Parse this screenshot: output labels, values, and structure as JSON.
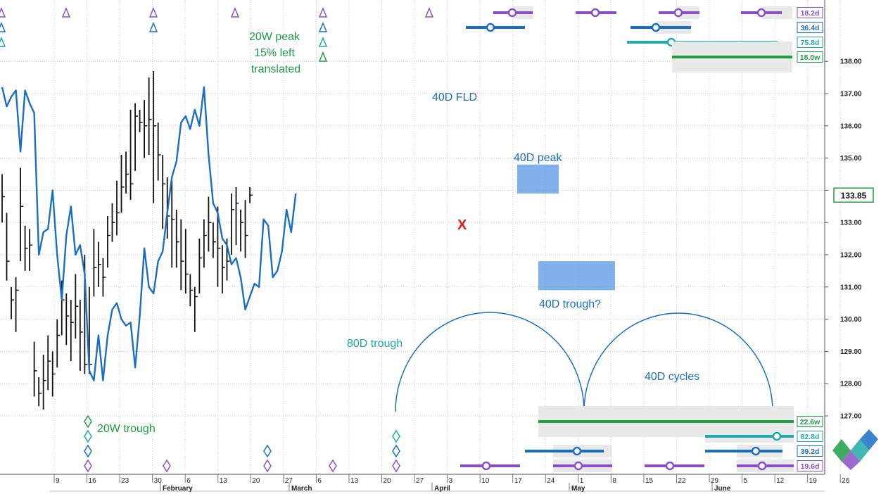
{
  "chart_data": {
    "type": "bar",
    "y_axis": {
      "ylim": [
        126.0,
        138.4
      ],
      "ticks": [
        "127.00",
        "128.00",
        "129.00",
        "130.00",
        "131.00",
        "132.00",
        "133.00",
        "134.00",
        "135.00",
        "136.00",
        "137.00",
        "138.00"
      ],
      "current_price": "133.85"
    },
    "x_axis": {
      "day_ticks": [
        "9",
        "16",
        "23",
        "30",
        "6",
        "13",
        "20",
        "27",
        "6",
        "13",
        "20",
        "27",
        "3",
        "10",
        "17",
        "24",
        "1",
        "8",
        "15",
        "22",
        "29",
        "5",
        "12",
        "19",
        "26"
      ],
      "months": [
        "February",
        "March",
        "April",
        "May",
        "June"
      ]
    },
    "price_bars": [
      {
        "h": 134.5,
        "l": 133.0,
        "c": 133.8
      },
      {
        "h": 133.3,
        "l": 131.2,
        "c": 131.8
      },
      {
        "h": 131.0,
        "l": 130.0,
        "c": 130.6
      },
      {
        "h": 131.3,
        "l": 129.6,
        "c": 130.9
      },
      {
        "h": 134.7,
        "l": 131.8,
        "c": 133.5
      },
      {
        "h": 132.9,
        "l": 131.5,
        "c": 132.2
      },
      {
        "h": 132.8,
        "l": 131.5,
        "c": 132.3
      },
      {
        "h": 129.3,
        "l": 127.6,
        "c": 128.4
      },
      {
        "h": 128.2,
        "l": 127.3,
        "c": 127.7
      },
      {
        "h": 128.9,
        "l": 127.2,
        "c": 128.1
      },
      {
        "h": 129.5,
        "l": 127.8,
        "c": 128.7
      },
      {
        "h": 129.0,
        "l": 127.6,
        "c": 128.3
      },
      {
        "h": 130.0,
        "l": 128.5,
        "c": 129.5
      },
      {
        "h": 131.2,
        "l": 129.5,
        "c": 130.6
      },
      {
        "h": 130.8,
        "l": 129.2,
        "c": 130.1
      },
      {
        "h": 130.6,
        "l": 128.7,
        "c": 129.9
      },
      {
        "h": 131.4,
        "l": 129.4,
        "c": 130.4
      },
      {
        "h": 130.6,
        "l": 128.4,
        "c": 129.6
      },
      {
        "h": 132.0,
        "l": 128.3,
        "c": 128.6
      },
      {
        "h": 131.0,
        "l": 128.3,
        "c": 128.6
      },
      {
        "h": 132.8,
        "l": 130.7,
        "c": 131.6
      },
      {
        "h": 132.4,
        "l": 131.0,
        "c": 131.7
      },
      {
        "h": 131.9,
        "l": 130.7,
        "c": 131.3
      },
      {
        "h": 133.2,
        "l": 131.6,
        "c": 132.6
      },
      {
        "h": 133.6,
        "l": 132.4,
        "c": 133.0
      },
      {
        "h": 134.3,
        "l": 132.6,
        "c": 133.3
      },
      {
        "h": 135.1,
        "l": 133.3,
        "c": 134.1
      },
      {
        "h": 135.2,
        "l": 133.9,
        "c": 134.5
      },
      {
        "h": 136.5,
        "l": 133.7,
        "c": 134.2
      },
      {
        "h": 136.7,
        "l": 134.6,
        "c": 136.3
      },
      {
        "h": 136.5,
        "l": 135.8,
        "c": 136.1
      },
      {
        "h": 136.8,
        "l": 135.0,
        "c": 136.0
      },
      {
        "h": 137.5,
        "l": 135.1,
        "c": 136.2
      },
      {
        "h": 137.7,
        "l": 133.6,
        "c": 136.0
      },
      {
        "h": 136.1,
        "l": 134.3,
        "c": 135.1
      },
      {
        "h": 135.1,
        "l": 132.8,
        "c": 134.2
      },
      {
        "h": 134.4,
        "l": 132.5,
        "c": 133.2
      },
      {
        "h": 134.3,
        "l": 131.6,
        "c": 133.1
      },
      {
        "h": 133.4,
        "l": 131.6,
        "c": 132.4
      },
      {
        "h": 133.1,
        "l": 130.9,
        "c": 131.8
      },
      {
        "h": 132.8,
        "l": 130.8,
        "c": 131.4
      },
      {
        "h": 131.4,
        "l": 130.4,
        "c": 130.9
      },
      {
        "h": 131.0,
        "l": 129.6,
        "c": 130.7
      },
      {
        "h": 132.5,
        "l": 130.8,
        "c": 131.9
      },
      {
        "h": 133.1,
        "l": 131.6,
        "c": 132.6
      },
      {
        "h": 133.8,
        "l": 132.1,
        "c": 133.0
      },
      {
        "h": 133.0,
        "l": 131.9,
        "c": 132.4
      },
      {
        "h": 133.5,
        "l": 131.0,
        "c": 132.2
      },
      {
        "h": 132.3,
        "l": 130.8,
        "c": 131.6
      },
      {
        "h": 132.5,
        "l": 131.2,
        "c": 131.8
      },
      {
        "h": 133.9,
        "l": 132.0,
        "c": 133.4
      },
      {
        "h": 134.1,
        "l": 132.3,
        "c": 133.6
      },
      {
        "h": 133.4,
        "l": 132.1,
        "c": 133.0
      },
      {
        "h": 133.7,
        "l": 131.9,
        "c": 132.6
      },
      {
        "h": 134.1,
        "l": 133.6,
        "c": 133.85
      }
    ],
    "fld": {
      "label": "40D FLD",
      "color": "#1a6fc4",
      "points": [
        [
          0,
          137.2
        ],
        [
          1,
          136.6
        ],
        [
          2,
          136.9
        ],
        [
          3,
          137.1
        ],
        [
          4,
          135.2
        ],
        [
          5,
          137.1
        ],
        [
          6,
          136.7
        ],
        [
          7,
          136.4
        ],
        [
          8,
          132.0
        ],
        [
          9,
          132.7
        ],
        [
          10,
          132.8
        ],
        [
          11,
          134.0
        ],
        [
          12,
          132.0
        ],
        [
          13,
          130.6
        ],
        [
          14,
          132.6
        ],
        [
          15,
          133.5
        ],
        [
          16,
          132.0
        ],
        [
          17,
          132.3
        ],
        [
          18,
          131.4
        ],
        [
          19,
          128.4
        ],
        [
          20,
          128.1
        ],
        [
          21,
          129.5
        ],
        [
          22,
          128.1
        ],
        [
          23,
          129.5
        ],
        [
          24,
          130.3
        ],
        [
          25,
          130.5
        ],
        [
          26,
          130.0
        ],
        [
          27,
          129.8
        ],
        [
          28,
          129.9
        ],
        [
          29,
          128.5
        ],
        [
          30,
          130.1
        ],
        [
          31,
          132.2
        ],
        [
          32,
          131.0
        ],
        [
          33,
          130.8
        ],
        [
          34,
          131.8
        ],
        [
          35,
          132.1
        ],
        [
          36,
          133.3
        ],
        [
          37,
          134.4
        ],
        [
          38,
          134.9
        ],
        [
          39,
          136.1
        ],
        [
          40,
          136.3
        ],
        [
          41,
          135.9
        ],
        [
          42,
          136.5
        ],
        [
          43,
          136.0
        ],
        [
          44,
          137.2
        ],
        [
          45,
          135.1
        ],
        [
          46,
          133.6
        ],
        [
          47,
          133.3
        ],
        [
          48,
          132.5
        ],
        [
          49,
          132.3
        ],
        [
          50,
          131.7
        ],
        [
          51,
          131.9
        ],
        [
          52,
          131.3
        ],
        [
          53,
          130.3
        ],
        [
          54,
          130.7
        ],
        [
          55,
          131.1
        ],
        [
          56,
          131.0
        ],
        [
          57,
          133.1
        ],
        [
          58,
          132.9
        ],
        [
          59,
          131.3
        ],
        [
          60,
          131.5
        ],
        [
          61,
          132.1
        ],
        [
          62,
          133.4
        ],
        [
          63,
          132.7
        ],
        [
          64,
          133.9
        ]
      ]
    },
    "series": [
      {
        "name": "18.2d",
        "color": "#8a4fc7"
      },
      {
        "name": "36.4d",
        "color": "#1a6fc4"
      },
      {
        "name": "75.8d",
        "color": "#1eaaa8"
      },
      {
        "name": "18.0w",
        "color": "#1e9d45"
      },
      {
        "name": "22.6w",
        "color": "#1e9d45"
      },
      {
        "name": "82.8d",
        "color": "#1eaaa8"
      },
      {
        "name": "39.2d",
        "color": "#1a6fc4"
      },
      {
        "name": "19.6d",
        "color": "#8a4fc7"
      }
    ],
    "annotations": {
      "peak_20w": [
        "20W peak",
        "15% left",
        "translated"
      ],
      "fld": "40D FLD",
      "peak_40d": "40D peak",
      "trough_40d": "40D trough?",
      "trough_80d": "80D trough",
      "trough_20w": "20W trough",
      "cycles_40d": "40D cycles",
      "marker": "X"
    }
  }
}
